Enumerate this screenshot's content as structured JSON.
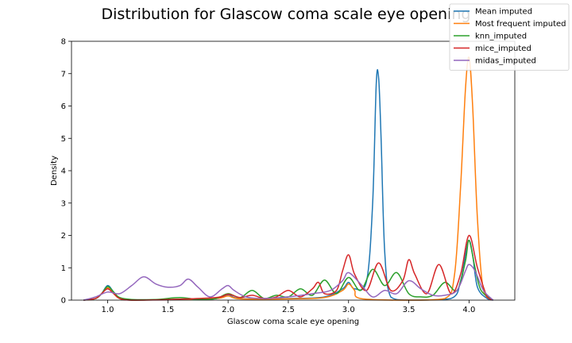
{
  "chart_data": {
    "type": "line",
    "title": "Distribution for Glascow coma scale eye opening",
    "xlabel": "Glascow coma scale eye opening",
    "ylabel": "Density",
    "xlim": [
      0.7,
      4.38
    ],
    "ylim": [
      0,
      8
    ],
    "xticks": [
      1.0,
      1.5,
      2.0,
      2.5,
      3.0,
      3.5,
      4.0
    ],
    "xtick_labels": [
      "1.0",
      "1.5",
      "2.0",
      "2.5",
      "3.0",
      "3.5",
      "4.0"
    ],
    "yticks": [
      0,
      1,
      2,
      3,
      4,
      5,
      6,
      7,
      8
    ],
    "ytick_labels": [
      "0",
      "1",
      "2",
      "3",
      "4",
      "5",
      "6",
      "7",
      "8"
    ],
    "grid": false,
    "legend_position": "top-right",
    "series": [
      {
        "name": "Mean imputed",
        "color": "#1f77b4",
        "x": [
          0.8,
          0.9,
          0.95,
          1.0,
          1.05,
          1.1,
          1.2,
          1.5,
          1.9,
          2.0,
          2.1,
          2.5,
          2.8,
          2.95,
          3.0,
          3.05,
          3.15,
          3.2,
          3.23,
          3.25,
          3.27,
          3.3,
          3.35,
          3.5,
          3.85,
          3.93,
          3.97,
          4.0,
          4.03,
          4.07,
          4.15,
          4.2
        ],
        "y": [
          0.0,
          0.05,
          0.2,
          0.45,
          0.25,
          0.05,
          0.0,
          0.02,
          0.05,
          0.17,
          0.05,
          0.05,
          0.1,
          0.35,
          0.55,
          0.35,
          0.6,
          3.0,
          6.7,
          6.85,
          5.0,
          1.5,
          0.1,
          0.0,
          0.05,
          0.6,
          1.4,
          1.85,
          1.4,
          0.4,
          0.05,
          0.0
        ]
      },
      {
        "name": "Most frequent imputed",
        "color": "#ff7f0e",
        "x": [
          0.8,
          0.9,
          0.95,
          1.0,
          1.05,
          1.1,
          1.2,
          1.5,
          1.9,
          2.0,
          2.1,
          2.5,
          2.8,
          2.95,
          3.0,
          3.05,
          3.1,
          3.5,
          3.8,
          3.88,
          3.93,
          3.97,
          4.0,
          4.03,
          4.07,
          4.12,
          4.2
        ],
        "y": [
          0.0,
          0.05,
          0.2,
          0.38,
          0.2,
          0.05,
          0.0,
          0.02,
          0.05,
          0.13,
          0.04,
          0.04,
          0.08,
          0.3,
          0.5,
          0.3,
          0.05,
          0.0,
          0.05,
          0.8,
          3.5,
          6.5,
          7.5,
          6.0,
          2.5,
          0.3,
          0.0
        ]
      },
      {
        "name": "knn_imputed",
        "color": "#2ca02c",
        "x": [
          0.8,
          0.9,
          0.95,
          1.0,
          1.05,
          1.1,
          1.2,
          1.4,
          1.6,
          1.75,
          1.9,
          2.0,
          2.1,
          2.2,
          2.3,
          2.4,
          2.5,
          2.6,
          2.7,
          2.8,
          2.9,
          3.0,
          3.1,
          3.2,
          3.3,
          3.4,
          3.5,
          3.6,
          3.7,
          3.8,
          3.9,
          3.97,
          4.0,
          4.05,
          4.1,
          4.2
        ],
        "y": [
          0.0,
          0.05,
          0.2,
          0.42,
          0.25,
          0.08,
          0.02,
          0.02,
          0.08,
          0.02,
          0.05,
          0.2,
          0.08,
          0.3,
          0.05,
          0.15,
          0.1,
          0.35,
          0.15,
          0.62,
          0.2,
          0.7,
          0.3,
          0.95,
          0.45,
          0.85,
          0.2,
          0.1,
          0.15,
          0.55,
          0.3,
          1.2,
          1.85,
          1.0,
          0.3,
          0.0
        ]
      },
      {
        "name": "mice_imputed",
        "color": "#d62728",
        "x": [
          0.8,
          0.9,
          0.95,
          1.0,
          1.05,
          1.1,
          1.2,
          1.5,
          1.9,
          2.0,
          2.1,
          2.2,
          2.3,
          2.4,
          2.5,
          2.6,
          2.7,
          2.75,
          2.8,
          2.9,
          2.95,
          3.0,
          3.05,
          3.15,
          3.25,
          3.35,
          3.45,
          3.5,
          3.55,
          3.65,
          3.75,
          3.85,
          3.93,
          4.0,
          4.07,
          4.15,
          4.2
        ],
        "y": [
          0.0,
          0.05,
          0.2,
          0.35,
          0.2,
          0.05,
          0.0,
          0.02,
          0.08,
          0.18,
          0.08,
          0.15,
          0.05,
          0.1,
          0.3,
          0.1,
          0.35,
          0.55,
          0.2,
          0.3,
          0.9,
          1.4,
          0.8,
          0.3,
          1.15,
          0.3,
          0.6,
          1.25,
          0.8,
          0.2,
          1.1,
          0.2,
          0.8,
          2.0,
          1.0,
          0.1,
          0.0
        ]
      },
      {
        "name": "midas_imputed",
        "color": "#9467bd",
        "x": [
          0.8,
          0.9,
          1.0,
          1.1,
          1.2,
          1.3,
          1.4,
          1.5,
          1.6,
          1.67,
          1.75,
          1.85,
          1.95,
          2.0,
          2.05,
          2.15,
          2.3,
          2.5,
          2.7,
          2.85,
          2.95,
          3.0,
          3.1,
          3.2,
          3.3,
          3.4,
          3.5,
          3.6,
          3.7,
          3.8,
          3.9,
          3.97,
          4.0,
          4.05,
          4.12,
          4.2
        ],
        "y": [
          0.0,
          0.1,
          0.25,
          0.2,
          0.45,
          0.72,
          0.5,
          0.4,
          0.45,
          0.65,
          0.4,
          0.1,
          0.35,
          0.45,
          0.3,
          0.1,
          0.05,
          0.1,
          0.2,
          0.3,
          0.6,
          0.85,
          0.5,
          0.1,
          0.3,
          0.2,
          0.6,
          0.35,
          0.15,
          0.15,
          0.3,
          0.9,
          1.1,
          0.9,
          0.3,
          0.0
        ]
      }
    ]
  }
}
